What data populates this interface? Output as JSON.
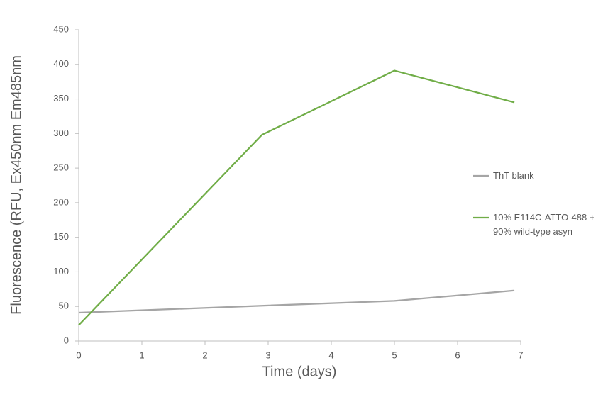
{
  "chart_data": {
    "type": "line",
    "x_label": "Time (days)",
    "y_label": "Fluorescence (RFU, Ex450nm Em485nm",
    "x": [
      0,
      2.9,
      5,
      6.9
    ],
    "series": [
      {
        "name": "ThT blank",
        "color": "#a5a5a5",
        "values": [
          41,
          51,
          58,
          73
        ]
      },
      {
        "name": "10% E114C-ATTO-488 + 90% wild-type asyn",
        "color": "#70ad47",
        "values": [
          23,
          298,
          391,
          345
        ]
      }
    ],
    "xlim": [
      0,
      7
    ],
    "xticks": [
      0,
      1,
      2,
      3,
      4,
      5,
      6,
      7
    ],
    "ylim": [
      0,
      450
    ],
    "yticks": [
      0,
      50,
      100,
      150,
      200,
      250,
      300,
      350,
      400,
      450
    ],
    "grid": false,
    "legend": "right"
  }
}
